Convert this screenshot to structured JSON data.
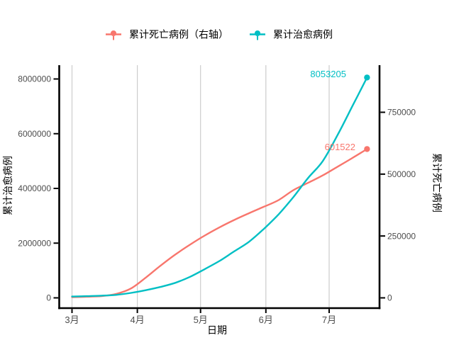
{
  "chart_data": {
    "type": "line",
    "title": "",
    "xlabel": "日期",
    "grid": "vertical-major-only",
    "legend_position": "top-center",
    "x_tick_labels": [
      "3月",
      "4月",
      "5月",
      "6月",
      "7月"
    ],
    "x_tick_days": [
      0,
      31,
      61,
      92,
      122
    ],
    "dates": [
      "2020-03-01",
      "2020-03-08",
      "2020-03-15",
      "2020-03-22",
      "2020-03-29",
      "2020-04-05",
      "2020-04-12",
      "2020-04-19",
      "2020-04-26",
      "2020-05-03",
      "2020-05-10",
      "2020-05-17",
      "2020-05-24",
      "2020-05-31",
      "2020-06-07",
      "2020-06-14",
      "2020-06-21",
      "2020-06-28",
      "2020-07-05",
      "2020-07-12",
      "2020-07-19"
    ],
    "day_offsets": [
      0,
      7,
      14,
      21,
      28,
      35,
      42,
      49,
      56,
      63,
      70,
      77,
      84,
      91,
      98,
      105,
      112,
      119,
      126,
      133,
      140
    ],
    "left_axis": {
      "title": "累计治愈病例",
      "ticks": [
        "0",
        "2000000",
        "4000000",
        "6000000",
        "8000000"
      ],
      "tick_values": [
        0,
        2000000,
        4000000,
        6000000,
        8000000
      ],
      "ylim": [
        0,
        8500000
      ],
      "max_value": 8053205
    },
    "right_axis": {
      "title": "累计死亡病例",
      "ticks": [
        "0",
        "250000",
        "500000",
        "750000"
      ],
      "tick_values": [
        0,
        250000,
        500000,
        750000
      ],
      "ylim": [
        0,
        940000
      ],
      "max_value": 601522
    },
    "series": [
      {
        "key": "cumulative-deaths",
        "name": "累计死亡病例（右轴）",
        "axis": "right",
        "color": "#F8766D",
        "end_label": "601522",
        "values": [
          3000,
          4500,
          7000,
          16000,
          38000,
          82000,
          130000,
          175000,
          215000,
          252000,
          285000,
          315000,
          342000,
          368000,
          395000,
          435000,
          465000,
          495000,
          530000,
          565000,
          601522
        ]
      },
      {
        "key": "cumulative-cured",
        "name": "累计治愈病例",
        "axis": "left",
        "color": "#00BFC4",
        "end_label": "8053205",
        "values": [
          48000,
          62000,
          80000,
          110000,
          180000,
          280000,
          400000,
          550000,
          770000,
          1050000,
          1350000,
          1700000,
          2050000,
          2520000,
          3050000,
          3680000,
          4380000,
          5000000,
          5950000,
          7000000,
          8053205
        ]
      }
    ],
    "legend": {
      "items": [
        {
          "label": "累计死亡病例（右轴）",
          "color": "#F8766D"
        },
        {
          "label": "累计治愈病例",
          "color": "#00BFC4"
        }
      ]
    },
    "colors": {
      "deaths_line": "#F8766D",
      "cured_line": "#00BFC4",
      "gridline": "#cccccc",
      "axis_line": "#000000",
      "axis_text": "#4d4d4d",
      "background": "#ffffff"
    }
  }
}
